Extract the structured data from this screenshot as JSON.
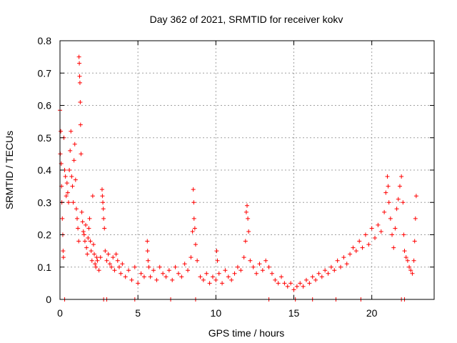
{
  "chart_data": {
    "type": "scatter",
    "title": "Day 362 of 2021, SRMTID for receiver kokv",
    "xlabel": "GPS time / hours",
    "ylabel": "SRMTID / TECUs",
    "xlim": [
      0,
      24
    ],
    "ylim": [
      0,
      0.8
    ],
    "x_ticks": [
      0,
      5,
      10,
      15,
      20
    ],
    "x_tick_labels": [
      "0",
      "5",
      "10",
      "15",
      "20"
    ],
    "y_ticks": [
      0,
      0.1,
      0.2,
      0.3,
      0.4,
      0.5,
      0.6,
      0.7,
      0.8
    ],
    "y_tick_labels": [
      "0",
      "0.1",
      "0.2",
      "0.3",
      "0.4",
      "0.5",
      "0.6",
      "0.7",
      "0.8"
    ],
    "grid": true,
    "marker": "plus",
    "color": "#ff0000",
    "series": [
      {
        "name": "SRMTID",
        "points": [
          [
            0.0,
            0.585
          ],
          [
            0.02,
            0.45
          ],
          [
            0.05,
            0.52
          ],
          [
            0.08,
            0.42
          ],
          [
            0.1,
            0.35
          ],
          [
            0.12,
            0.3
          ],
          [
            0.15,
            0.25
          ],
          [
            0.18,
            0.2
          ],
          [
            0.2,
            0.15
          ],
          [
            0.22,
            0.13
          ],
          [
            0.25,
            0.5
          ],
          [
            0.3,
            0.4
          ],
          [
            0.35,
            0.38
          ],
          [
            0.4,
            0.32
          ],
          [
            0.45,
            0.36
          ],
          [
            0.5,
            0.33
          ],
          [
            0.55,
            0.3
          ],
          [
            0.6,
            0.4
          ],
          [
            0.65,
            0.46
          ],
          [
            0.7,
            0.52
          ],
          [
            0.75,
            0.38
          ],
          [
            0.8,
            0.35
          ],
          [
            0.85,
            0.3
          ],
          [
            0.9,
            0.43
          ],
          [
            0.95,
            0.48
          ],
          [
            1.0,
            0.37
          ],
          [
            1.05,
            0.28
          ],
          [
            1.1,
            0.25
          ],
          [
            1.15,
            0.22
          ],
          [
            1.2,
            0.18
          ],
          [
            1.22,
            0.75
          ],
          [
            1.24,
            0.73
          ],
          [
            1.26,
            0.69
          ],
          [
            1.28,
            0.67
          ],
          [
            1.3,
            0.61
          ],
          [
            1.32,
            0.54
          ],
          [
            1.35,
            0.45
          ],
          [
            1.4,
            0.27
          ],
          [
            1.45,
            0.24
          ],
          [
            1.5,
            0.21
          ],
          [
            1.55,
            0.2
          ],
          [
            1.6,
            0.18
          ],
          [
            1.65,
            0.23
          ],
          [
            1.7,
            0.16
          ],
          [
            1.75,
            0.14
          ],
          [
            1.8,
            0.19
          ],
          [
            1.85,
            0.22
          ],
          [
            1.9,
            0.25
          ],
          [
            1.95,
            0.18
          ],
          [
            2.0,
            0.15
          ],
          [
            2.05,
            0.12
          ],
          [
            2.1,
            0.32
          ],
          [
            2.15,
            0.17
          ],
          [
            2.2,
            0.14
          ],
          [
            2.25,
            0.11
          ],
          [
            2.3,
            0.1
          ],
          [
            2.35,
            0.13
          ],
          [
            2.4,
            0.12
          ],
          [
            2.5,
            0.09
          ],
          [
            2.6,
            0.13
          ],
          [
            2.7,
            0.34
          ],
          [
            2.72,
            0.32
          ],
          [
            2.75,
            0.3
          ],
          [
            2.78,
            0.28
          ],
          [
            2.8,
            0.25
          ],
          [
            2.85,
            0.22
          ],
          [
            2.9,
            0.15
          ],
          [
            3.0,
            0.12
          ],
          [
            3.1,
            0.14
          ],
          [
            3.2,
            0.11
          ],
          [
            3.3,
            0.1
          ],
          [
            3.4,
            0.13
          ],
          [
            3.5,
            0.09
          ],
          [
            3.6,
            0.14
          ],
          [
            3.7,
            0.12
          ],
          [
            3.8,
            0.1
          ],
          [
            3.9,
            0.08
          ],
          [
            4.0,
            0.11
          ],
          [
            4.2,
            0.07
          ],
          [
            4.4,
            0.09
          ],
          [
            4.6,
            0.06
          ],
          [
            4.8,
            0.1
          ],
          [
            5.0,
            0.05
          ],
          [
            5.2,
            0.08
          ],
          [
            5.4,
            0.07
          ],
          [
            5.6,
            0.18
          ],
          [
            5.62,
            0.15
          ],
          [
            5.65,
            0.12
          ],
          [
            5.7,
            0.1
          ],
          [
            5.8,
            0.07
          ],
          [
            6.0,
            0.09
          ],
          [
            6.2,
            0.06
          ],
          [
            6.4,
            0.1
          ],
          [
            6.6,
            0.08
          ],
          [
            6.8,
            0.07
          ],
          [
            7.0,
            0.09
          ],
          [
            7.2,
            0.06
          ],
          [
            7.4,
            0.1
          ],
          [
            7.6,
            0.08
          ],
          [
            7.8,
            0.07
          ],
          [
            8.0,
            0.11
          ],
          [
            8.2,
            0.09
          ],
          [
            8.4,
            0.13
          ],
          [
            8.5,
            0.21
          ],
          [
            8.55,
            0.34
          ],
          [
            8.58,
            0.3
          ],
          [
            8.6,
            0.25
          ],
          [
            8.65,
            0.22
          ],
          [
            8.7,
            0.17
          ],
          [
            8.8,
            0.12
          ],
          [
            9.0,
            0.07
          ],
          [
            9.2,
            0.06
          ],
          [
            9.4,
            0.08
          ],
          [
            9.6,
            0.05
          ],
          [
            9.8,
            0.07
          ],
          [
            10.0,
            0.06
          ],
          [
            10.05,
            0.15
          ],
          [
            10.1,
            0.12
          ],
          [
            10.2,
            0.08
          ],
          [
            10.4,
            0.05
          ],
          [
            10.6,
            0.09
          ],
          [
            10.8,
            0.07
          ],
          [
            11.0,
            0.06
          ],
          [
            11.2,
            0.08
          ],
          [
            11.4,
            0.1
          ],
          [
            11.6,
            0.09
          ],
          [
            11.8,
            0.13
          ],
          [
            11.9,
            0.18
          ],
          [
            11.95,
            0.27
          ],
          [
            12.0,
            0.29
          ],
          [
            12.05,
            0.25
          ],
          [
            12.1,
            0.21
          ],
          [
            12.2,
            0.12
          ],
          [
            12.4,
            0.1
          ],
          [
            12.6,
            0.08
          ],
          [
            12.8,
            0.11
          ],
          [
            13.0,
            0.09
          ],
          [
            13.2,
            0.12
          ],
          [
            13.4,
            0.1
          ],
          [
            13.6,
            0.08
          ],
          [
            13.8,
            0.06
          ],
          [
            14.0,
            0.05
          ],
          [
            14.2,
            0.07
          ],
          [
            14.4,
            0.05
          ],
          [
            14.6,
            0.04
          ],
          [
            14.8,
            0.05
          ],
          [
            15.0,
            0.03
          ],
          [
            15.2,
            0.04
          ],
          [
            15.4,
            0.05
          ],
          [
            15.6,
            0.04
          ],
          [
            15.8,
            0.06
          ],
          [
            16.0,
            0.05
          ],
          [
            16.2,
            0.07
          ],
          [
            16.4,
            0.06
          ],
          [
            16.6,
            0.08
          ],
          [
            16.8,
            0.07
          ],
          [
            17.0,
            0.09
          ],
          [
            17.2,
            0.08
          ],
          [
            17.4,
            0.1
          ],
          [
            17.6,
            0.09
          ],
          [
            17.8,
            0.12
          ],
          [
            18.0,
            0.1
          ],
          [
            18.2,
            0.13
          ],
          [
            18.4,
            0.11
          ],
          [
            18.6,
            0.14
          ],
          [
            18.8,
            0.16
          ],
          [
            19.0,
            0.15
          ],
          [
            19.2,
            0.18
          ],
          [
            19.4,
            0.16
          ],
          [
            19.6,
            0.2
          ],
          [
            19.8,
            0.17
          ],
          [
            20.0,
            0.22
          ],
          [
            20.2,
            0.19
          ],
          [
            20.4,
            0.23
          ],
          [
            20.6,
            0.21
          ],
          [
            20.8,
            0.27
          ],
          [
            20.9,
            0.33
          ],
          [
            21.0,
            0.38
          ],
          [
            21.05,
            0.35
          ],
          [
            21.1,
            0.3
          ],
          [
            21.2,
            0.25
          ],
          [
            21.3,
            0.2
          ],
          [
            21.4,
            0.16
          ],
          [
            21.5,
            0.22
          ],
          [
            21.6,
            0.28
          ],
          [
            21.7,
            0.31
          ],
          [
            21.8,
            0.35
          ],
          [
            21.9,
            0.38
          ],
          [
            22.0,
            0.3
          ],
          [
            22.05,
            0.2
          ],
          [
            22.1,
            0.15
          ],
          [
            22.2,
            0.13
          ],
          [
            22.3,
            0.12
          ],
          [
            22.4,
            0.1
          ],
          [
            22.5,
            0.09
          ],
          [
            22.6,
            0.08
          ],
          [
            22.7,
            0.12
          ],
          [
            22.75,
            0.18
          ],
          [
            22.8,
            0.25
          ],
          [
            22.85,
            0.32
          ],
          [
            0.3,
            0.0
          ],
          [
            2.8,
            0.0
          ],
          [
            3.0,
            0.0
          ],
          [
            4.8,
            0.0
          ],
          [
            7.1,
            0.0
          ],
          [
            8.7,
            0.0
          ],
          [
            13.4,
            0.0
          ],
          [
            15.1,
            0.0
          ],
          [
            16.2,
            0.0
          ],
          [
            17.7,
            0.0
          ],
          [
            19.3,
            0.0
          ],
          [
            21.9,
            0.0
          ],
          [
            22.1,
            0.0
          ]
        ]
      }
    ]
  }
}
